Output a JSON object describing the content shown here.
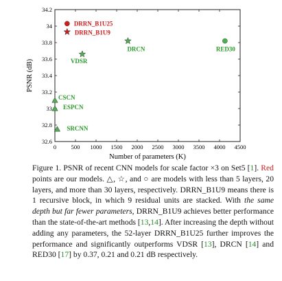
{
  "chart_data": {
    "type": "scatter",
    "xlabel": "Number of parameters (K)",
    "ylabel": "PSNR (dB)",
    "xlim": [
      0,
      4500
    ],
    "ylim": [
      32.6,
      34.2
    ],
    "xticks": [
      "0",
      "500",
      "1000",
      "1500",
      "2000",
      "2500",
      "3000",
      "3500",
      "4000",
      "4500"
    ],
    "yticks": [
      "32.6",
      "32.8",
      "33",
      "33.2",
      "33.4",
      "33.6",
      "33.8",
      "34",
      "34.2"
    ],
    "grid": false,
    "points": [
      {
        "label": "DRRN_B1U25",
        "x": 297,
        "y": 34.03,
        "marker": "circle",
        "color": "#d01c1c",
        "label_color": "#d01c1c"
      },
      {
        "label": "DRRN_B1U9",
        "x": 297,
        "y": 33.93,
        "marker": "star",
        "color": "#d01c1c",
        "label_color": "#d01c1c"
      },
      {
        "label": "DRCN",
        "x": 1774,
        "y": 33.82,
        "marker": "star",
        "color": "#4caf50",
        "label_color": "#2e9a2e"
      },
      {
        "label": "RED30",
        "x": 4131,
        "y": 33.82,
        "marker": "circle",
        "color": "#4caf50",
        "label_color": "#2e9a2e"
      },
      {
        "label": "VDSR",
        "x": 665,
        "y": 33.66,
        "marker": "star",
        "color": "#4caf50",
        "label_color": "#2e9a2e"
      },
      {
        "label": "CSCN",
        "x": 0,
        "y": 33.1,
        "marker": "triangle",
        "color": "#4caf50",
        "label_color": "#2e9a2e"
      },
      {
        "label": "ESPCN",
        "x": 0,
        "y": 33.0,
        "marker": "triangle",
        "color": "#4caf50",
        "label_color": "#2e9a2e"
      },
      {
        "label": "SRCNN",
        "x": 57,
        "y": 32.75,
        "marker": "triangle",
        "color": "#4caf50",
        "label_color": "#2e9a2e"
      }
    ]
  },
  "caption": {
    "figure_label": "Figure 1.",
    "s1": " PSNR of recent CNN models for scale factor ×3 on Set5 [",
    "ref_set5": "1",
    "s2": "]. ",
    "red_word": "Red",
    "s3": " points are our models. △, ☆, and ○ are models with less than 5 layers, 20 layers, and more than 30 layers, respectively. DRRN_B1U9 means there is 1 recursive block, in which 9 residual units are stacked. With ",
    "italic": "the same depth but far fewer parameters",
    "s4": ", DRRN_B1U9 achieves better performance than the state-of-the-art methods [",
    "ref_13a": "13",
    "comma": ",",
    "ref_14a": "14",
    "s5": "]. After increasing the depth without adding any parameters, the 52-layer DRRN_B1U25 further improves the performance and significantly outperforms VDSR [",
    "ref_13b": "13",
    "s6": "], DRCN [",
    "ref_14b": "14",
    "s7": "] and RED30 [",
    "ref_17": "17",
    "s8": "] by 0.37, 0.21 and 0.21 dB respectively."
  }
}
